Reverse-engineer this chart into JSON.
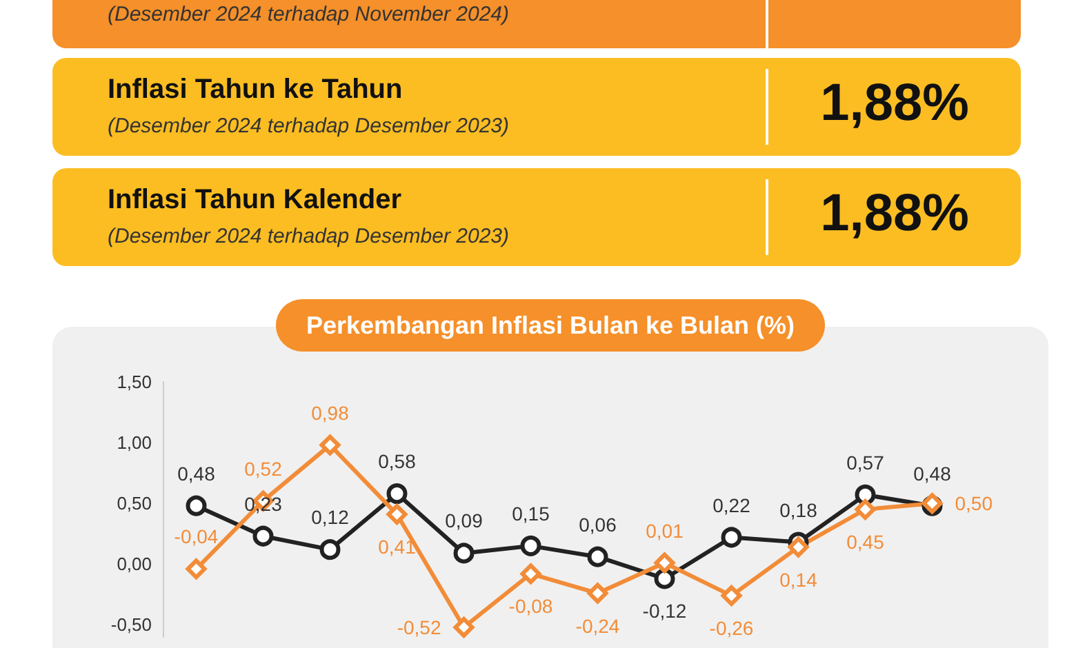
{
  "chart_data": [
    {
      "type": "other",
      "annotations": [
        "(Desember 2024 terhadap November 2024)",
        "Inflasi Tahun ke Tahun",
        "(Desember 2024 terhadap Desember 2023)",
        "1,88%",
        "Inflasi Tahun Kalender",
        "(Desember 2024 terhadap Desember 2023)",
        "1,88%"
      ]
    },
    {
      "type": "line",
      "title": "Perkembangan Inflasi Bulan ke Bulan (%)",
      "categories": [
        null,
        null,
        null,
        null,
        null,
        null,
        null,
        null,
        null,
        null,
        null,
        null
      ],
      "series": [
        {
          "color": "#222222",
          "marker": "circle",
          "values": [
            0.48,
            0.23,
            0.12,
            0.58,
            0.09,
            0.15,
            0.06,
            -0.12,
            0.22,
            0.18,
            0.57,
            0.48
          ],
          "value_labels": [
            "0,48",
            "0,23",
            "0,12",
            "0,58",
            "0,09",
            "0,15",
            "0,06",
            "-0,12",
            "0,22",
            "0,18",
            "0,57",
            "0,48"
          ]
        },
        {
          "color": "#f28c38",
          "marker": "diamond",
          "values": [
            -0.04,
            0.52,
            0.98,
            0.41,
            -0.52,
            -0.08,
            -0.24,
            0.01,
            -0.26,
            0.14,
            0.45,
            0.5
          ],
          "value_labels": [
            "-0,04",
            "0,52",
            "0,98",
            "0,41",
            "-0,52",
            "-0,08",
            "-0,24",
            "0,01",
            "-0,26",
            "0,14",
            "0,45",
            "0,50"
          ]
        }
      ],
      "ylim": [
        -0.6,
        1.5
      ],
      "yticks": [
        {
          "value": -0.5,
          "label": "-0,50"
        },
        {
          "value": 0,
          "label": "0,00"
        },
        {
          "value": 0.5,
          "label": "0,50"
        },
        {
          "value": 1,
          "label": "1,00"
        },
        {
          "value": 1.5,
          "label": "1,50"
        }
      ],
      "grid": false
    }
  ]
}
